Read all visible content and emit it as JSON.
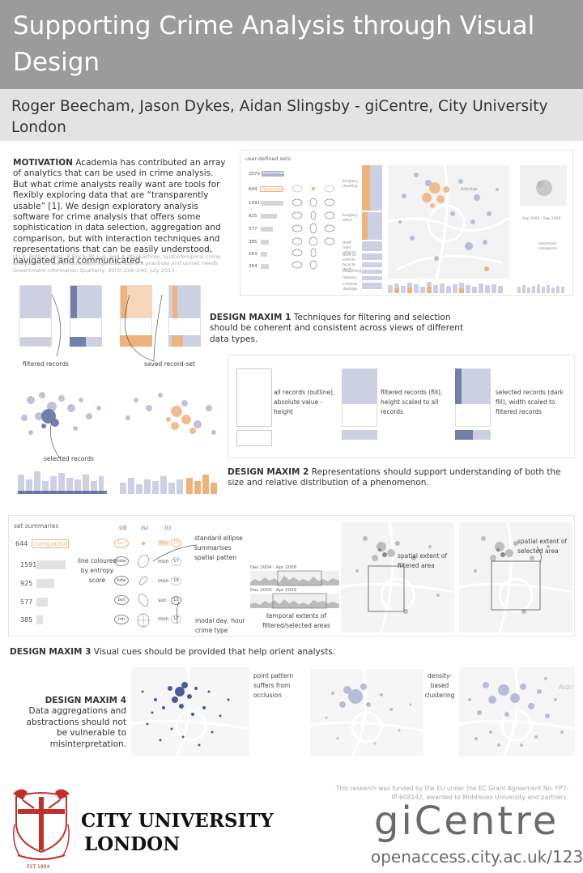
{
  "poster": {
    "title": "Supporting Crime Analysis through Visual Design",
    "authors": "Roger Beecham, Jason Dykes, Aidan Slingsby - giCentre, City University London"
  },
  "motivation": {
    "heading": "MOTIVATION",
    "text": "Academia has contributed an array of analytics that can be used in crime analysis. But what crime analysts really want are tools for flexibly exploring data that are “transparently usable” [1]. We design exploratory analysis software for crime analysis that offers some sophistication in data selection, aggregation and comparison, but with interaction techniques and representations that can be easily understood, navigated and communicated.",
    "reference": "[1] R. Roth, K. Ross, B.Finch, W. Luo, and A. MacEachren, Spatiotemporal crime analysis in US law enforcement agencies: Current practices and unmet needs. Government Information Quarterly, 30(3):226–240, July 2013"
  },
  "screenshot": {
    "sets_title": "user-defined sets",
    "row_labels": [
      "2070",
      "644",
      "1591",
      "925",
      "577",
      "385",
      "243",
      "364"
    ],
    "benchmark_label": "benchmark",
    "comparison_label": "comparison",
    "map_label": "Aldridge",
    "date_label": "Sep 2004 - Sep 2008",
    "legend_a": "benchmark",
    "legend_b": "comparison",
    "cat_labels": [
      "burglary dwelling",
      "burglary other",
      "theft from vehicle",
      "theft of vehicle",
      "bicycle theft",
      "shoplifting",
      "robbery",
      "criminal damage"
    ]
  },
  "maxim1": {
    "heading": "DESIGN MAXIM 1",
    "text": "Techniques for filtering and selection should be coherent and consistent across views of different data types.",
    "annot_filtered": "filtered records",
    "annot_saved": "saved record-set",
    "annot_selected": "selected records"
  },
  "maxim2": {
    "heading": "DESIGN MAXIM 2",
    "text": "Representations should support understanding of both the size and relative distribution of a phenomenon.",
    "annot_all": "all records (outline), absolute value - height",
    "annot_filtered": "filtered records (fill), height scaled to all records",
    "annot_selected": "selected records (dark fill), width scaled to filtered records"
  },
  "maxim3": {
    "heading": "DESIGN MAXIM 3",
    "text": "Visual cues should be provided that help orient analysts.",
    "set_summaries": "set summaries",
    "comparison_count": "644",
    "comparison_label": "comparison",
    "counts": [
      "1591",
      "925",
      "577",
      "385"
    ],
    "col_headers": [
      "(d)",
      "(s)",
      "(t)"
    ],
    "d_labels": [
      "bot",
      "bdw",
      "bdw",
      "bot",
      "tvh"
    ],
    "t_days": [
      "thu",
      "mon",
      "mon",
      "sun",
      "mon"
    ],
    "t_hours": [
      "16",
      "17",
      "16",
      "15",
      "17"
    ],
    "annot_line": "line coloured by entropy score",
    "annot_ellipse": "standard ellipse summarises spatial patten",
    "annot_modal": "modal day, hour crime type",
    "date1": "Dec 2004 - Apr 2008",
    "date2": "Dec 2004 - Apr 2009",
    "annot_temporal": "temporal extents of filtered/selected areas",
    "annot_spatial_filtered": "spatial extent of filtered area",
    "annot_spatial_selected": "spatial extent of selected area"
  },
  "maxim4": {
    "heading": "DESIGN MAXIM 4",
    "text": "Data aggregations and abstractions should not be vulnerable to misinterpretation.",
    "annot_point": "point pattern suffers from occlusion",
    "annot_density": "density-based clustering",
    "map_label": "Aldri"
  },
  "footer": {
    "funding": "This research was funded by the EU under the EC Grant Agreement No. FP7-IP-608142, awarded to Middlesex University and partners.",
    "city_line1": "CITY UNIVERSITY",
    "city_line2": "LONDON",
    "est": "EST 1894",
    "gicentre": "giCentre",
    "url": "openaccess.city.ac.uk/12331"
  },
  "colors": {
    "title_bar": "#9b9b9b",
    "author_bar": "#e3e3e3",
    "lavender": "#cdd0e2",
    "navy": "#7180ab",
    "orange": "#eeb27c",
    "crest_red": "#c0302d"
  }
}
